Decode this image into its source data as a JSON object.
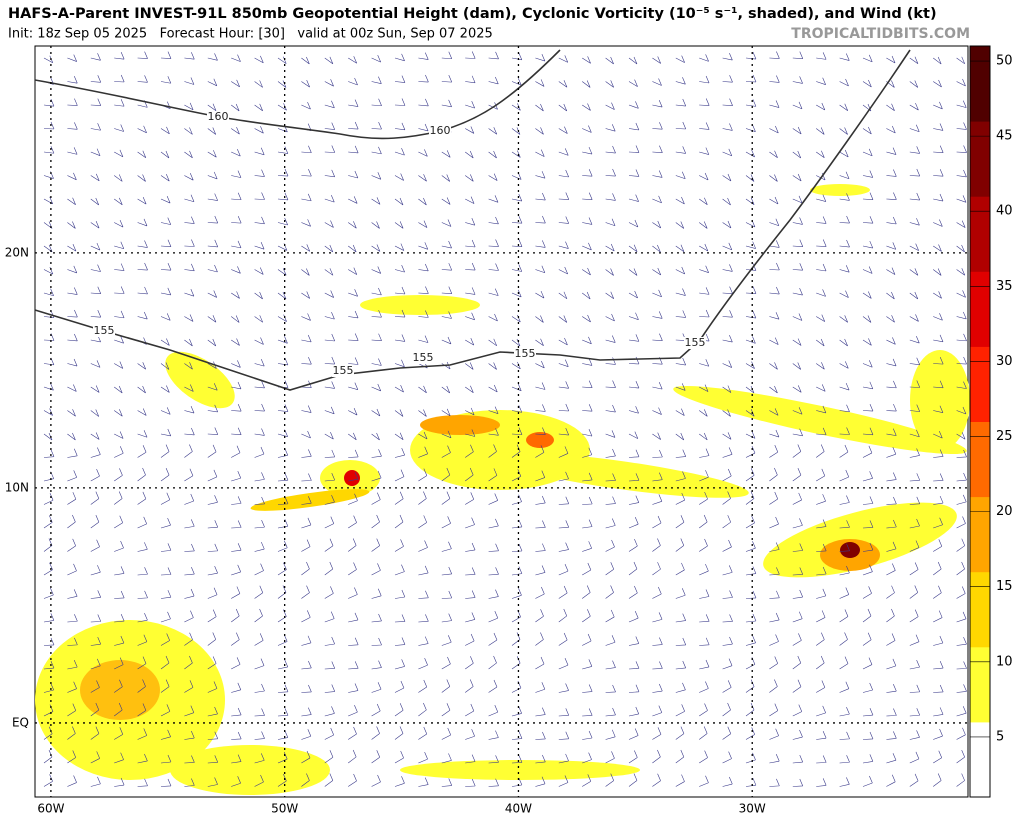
{
  "header": {
    "title": "HAFS-A-Parent INVEST-91L 850mb Geopotential Height (dam), Cyclonic Vorticity (10⁻⁵ s⁻¹, shaded), and Wind (kt)",
    "subtitle": "Init: 18z Sep 05 2025   Forecast Hour: [30]   valid at 00z Sun, Sep 07 2025",
    "watermark": "TROPICALTIDBITS.COM"
  },
  "map": {
    "lon_range": [
      -60.68,
      -20.77
    ],
    "lat_range": [
      -3.15,
      28.8
    ],
    "lon_ticks": [
      {
        "value": -60,
        "label": "60W"
      },
      {
        "value": -50,
        "label": "50W"
      },
      {
        "value": -40,
        "label": "40W"
      },
      {
        "value": -30,
        "label": "30W"
      }
    ],
    "lat_ticks": [
      {
        "value": 20,
        "label": "20N"
      },
      {
        "value": 10,
        "label": "10N"
      },
      {
        "value": 0,
        "label": "EQ"
      }
    ]
  },
  "contours": [
    {
      "label": 160
    },
    {
      "label": 160
    },
    {
      "label": 155
    },
    {
      "label": 155
    },
    {
      "label": 155
    },
    {
      "label": 155
    },
    {
      "label": 155
    }
  ],
  "colorbar": {
    "range": [
      1,
      51
    ],
    "ticks": [
      5,
      10,
      15,
      20,
      25,
      30,
      35,
      40,
      45,
      50
    ],
    "colors": [
      "#ffffff",
      "#ffff33",
      "#ffd700",
      "#ffa500",
      "#ff6a00",
      "#ff2200",
      "#e00000",
      "#b00000",
      "#800000",
      "#500000"
    ]
  }
}
